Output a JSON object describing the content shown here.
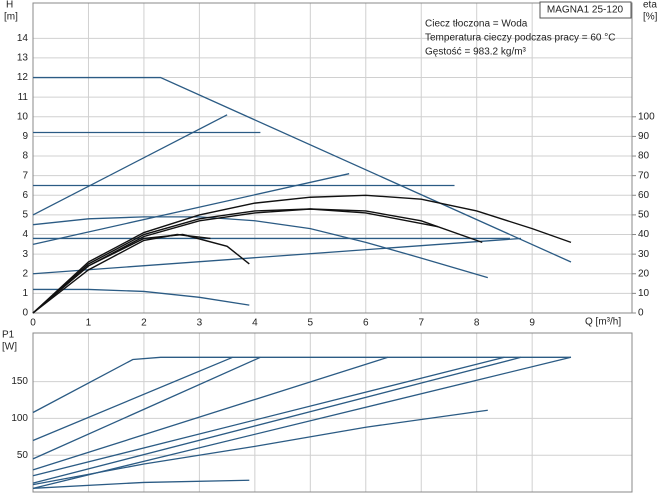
{
  "chart_data": [
    {
      "type": "line",
      "title": "MAGNA1 25-120",
      "annotations": [
        "Ciecz tłoczona = Woda",
        "Temperatura cieczy podczas pracy = 60 °C",
        "Gęstość = 983.2 kg/m³"
      ],
      "ylabel": "H",
      "yunit": "[m]",
      "y2label": "eta",
      "y2unit": "[%]",
      "xlabel": "Q [m³/h]",
      "xlim": [
        0,
        10.8
      ],
      "ylim": [
        0,
        15.8
      ],
      "y2lim": [
        0,
        158
      ],
      "xticks": [
        0,
        1,
        2,
        3,
        4,
        5,
        6,
        7,
        8,
        9
      ],
      "yticks": [
        0,
        1,
        2,
        3,
        4,
        5,
        6,
        7,
        8,
        9,
        10,
        11,
        12,
        13,
        14
      ],
      "y2ticks": [
        0,
        10,
        20,
        30,
        40,
        50,
        60,
        70,
        80,
        90,
        100
      ],
      "grid": true,
      "series": [
        {
          "color": "#2b5b84",
          "x": [
            0,
            2.3,
            9.7
          ],
          "values": [
            12,
            12,
            2.6
          ]
        },
        {
          "color": "#2b5b84",
          "x": [
            0,
            4.1
          ],
          "values": [
            9.2,
            9.2
          ]
        },
        {
          "color": "#2b5b84",
          "x": [
            0,
            7.6
          ],
          "values": [
            6.5,
            6.5
          ]
        },
        {
          "color": "#2b5b84",
          "x": [
            0,
            8.6
          ],
          "values": [
            3.8,
            3.8
          ]
        },
        {
          "color": "#2b5b84",
          "x": [
            0,
            3.5
          ],
          "values": [
            5,
            10.1
          ]
        },
        {
          "color": "#2b5b84",
          "x": [
            0,
            5.7
          ],
          "values": [
            3.5,
            7.1
          ]
        },
        {
          "color": "#2b5b84",
          "x": [
            0,
            8.8
          ],
          "values": [
            2,
            3.8
          ]
        },
        {
          "color": "#2b5b84",
          "x": [
            0,
            1,
            2,
            3,
            4,
            5,
            6,
            7,
            8.2
          ],
          "values": [
            4.5,
            4.8,
            4.9,
            4.9,
            4.7,
            4.3,
            3.6,
            2.8,
            1.8
          ]
        },
        {
          "color": "#2b5b84",
          "x": [
            0,
            1,
            2,
            3,
            3.9
          ],
          "values": [
            1.2,
            1.2,
            1.1,
            0.8,
            0.4
          ]
        },
        {
          "color": "#111111",
          "axis": "y2",
          "x": [
            0,
            1,
            2,
            3,
            4,
            5,
            6,
            7,
            8,
            9,
            9.7
          ],
          "values": [
            0,
            26,
            41,
            50,
            56,
            59,
            60,
            58,
            52,
            43,
            36
          ]
        },
        {
          "color": "#111111",
          "axis": "y2",
          "x": [
            0,
            1,
            2,
            3,
            4,
            5,
            6,
            7,
            8.1
          ],
          "values": [
            0,
            25,
            40,
            48,
            52,
            53,
            52,
            47,
            36
          ]
        },
        {
          "color": "#111111",
          "axis": "y2",
          "x": [
            0,
            1,
            2,
            3,
            4,
            5,
            6,
            7.3
          ],
          "values": [
            0,
            24,
            39,
            47,
            51,
            53,
            51,
            44
          ]
        },
        {
          "color": "#111111",
          "axis": "y2",
          "x": [
            0,
            1,
            2,
            2.7,
            3.5,
            3.9
          ],
          "values": [
            0,
            24,
            38,
            40,
            34,
            25
          ]
        },
        {
          "color": "#111111",
          "axis": "y2",
          "x": [
            0,
            1,
            2,
            2.6,
            3.2
          ],
          "values": [
            0,
            22,
            37,
            40,
            38
          ]
        }
      ]
    },
    {
      "type": "line",
      "ylabel": "P1",
      "yunit": "[W]",
      "xlim": [
        0,
        10.8
      ],
      "ylim": [
        0,
        216
      ],
      "yticks": [
        50,
        100,
        150
      ],
      "grid": true,
      "series": [
        {
          "color": "#2b5b84",
          "x": [
            0,
            1.8,
            2.3,
            9.7
          ],
          "values": [
            108,
            180,
            183,
            183
          ]
        },
        {
          "color": "#2b5b84",
          "x": [
            0,
            3.6
          ],
          "values": [
            70,
            183
          ]
        },
        {
          "color": "#2b5b84",
          "x": [
            0,
            4.1
          ],
          "values": [
            45,
            183
          ]
        },
        {
          "color": "#2b5b84",
          "x": [
            0,
            6.4
          ],
          "values": [
            30,
            183
          ]
        },
        {
          "color": "#2b5b84",
          "x": [
            0,
            8.5
          ],
          "values": [
            22,
            183
          ]
        },
        {
          "color": "#2b5b84",
          "x": [
            0,
            8.8
          ],
          "values": [
            12,
            183
          ]
        },
        {
          "color": "#2b5b84",
          "x": [
            0,
            9.7
          ],
          "values": [
            5,
            183
          ]
        },
        {
          "color": "#2b5b84",
          "x": [
            0,
            2,
            4,
            6,
            8,
            8.2
          ],
          "values": [
            10,
            38,
            62,
            88,
            109,
            111
          ]
        },
        {
          "color": "#2b5b84",
          "x": [
            0,
            2,
            3.9
          ],
          "values": [
            5,
            13,
            16
          ]
        }
      ]
    }
  ]
}
